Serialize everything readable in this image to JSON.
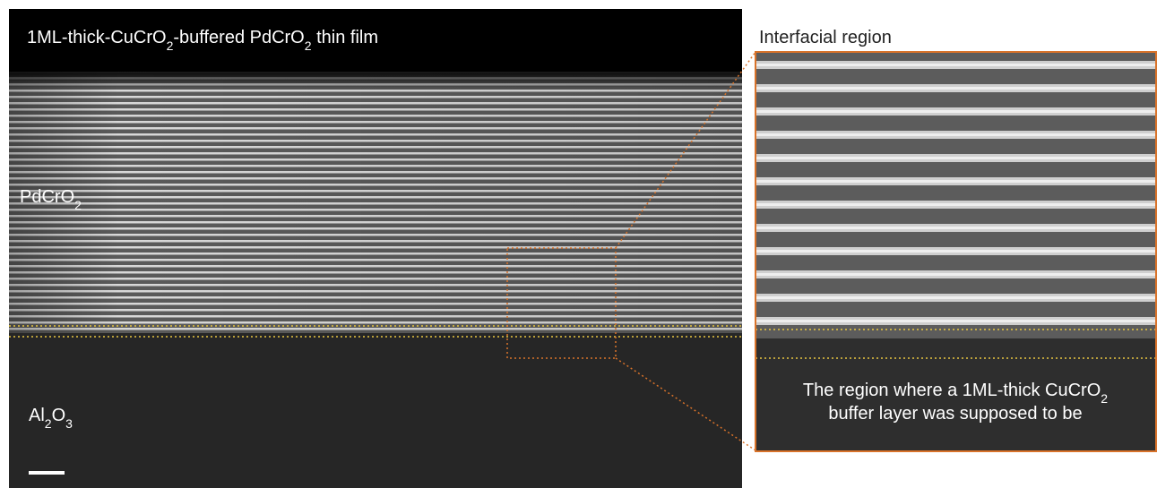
{
  "left_panel": {
    "title": [
      "1ML-thick-CuCrO",
      "2",
      "-buffered PdCrO",
      "2",
      " thin film"
    ],
    "film_label": [
      "PdCrO",
      "2"
    ],
    "substrate_label": [
      "Al",
      "2",
      "O",
      "3"
    ]
  },
  "inset": {
    "title": "Interfacial region",
    "caption_line1": [
      "The region where a 1ML-thick CuCrO",
      "2"
    ],
    "caption_line2": "buffer layer was supposed to be"
  }
}
